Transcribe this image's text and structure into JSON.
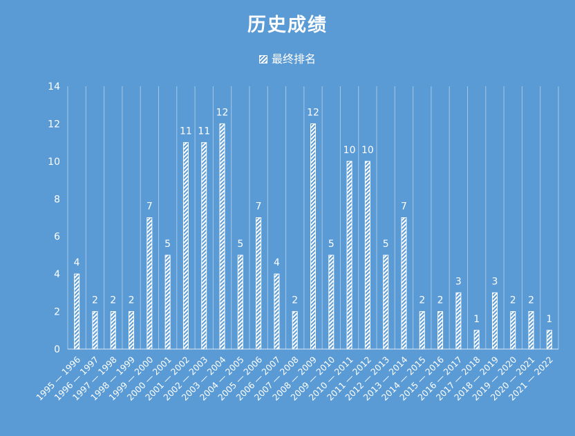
{
  "colors": {
    "background": "#5b9bd5",
    "foreground": "#ffffff"
  },
  "chart_data": {
    "type": "bar",
    "title": "历史成绩",
    "legend_position": "top",
    "grid": "vertical",
    "xlabel": "",
    "ylabel": "",
    "ylim": [
      0,
      14
    ],
    "yticks": [
      0,
      2,
      4,
      6,
      8,
      10,
      12,
      14
    ],
    "categories": [
      "1995 — 1996",
      "1996 — 1997",
      "1997 — 1998",
      "1998 — 1999",
      "1999 — 2000",
      "2000 — 2001",
      "2001 — 2002",
      "2002 — 2003",
      "2003 — 2004",
      "2004 — 2005",
      "2005 — 2006",
      "2006 — 2007",
      "2007 — 2008",
      "2008 — 2009",
      "2009 — 2010",
      "2010 — 2011",
      "2011 — 2012",
      "2012 — 2013",
      "2013 — 2014",
      "2014 — 2015",
      "2015 — 2016",
      "2016 — 2017",
      "2017 — 2018",
      "2018 — 2019",
      "2019 — 2020",
      "2020 — 2021",
      "2021 — 2022"
    ],
    "series": [
      {
        "name": "最终排名",
        "values": [
          4,
          2,
          2,
          2,
          7,
          5,
          11,
          11,
          12,
          5,
          7,
          4,
          2,
          12,
          5,
          10,
          10,
          5,
          7,
          2,
          2,
          3,
          1,
          3,
          2,
          2,
          1
        ]
      }
    ]
  }
}
